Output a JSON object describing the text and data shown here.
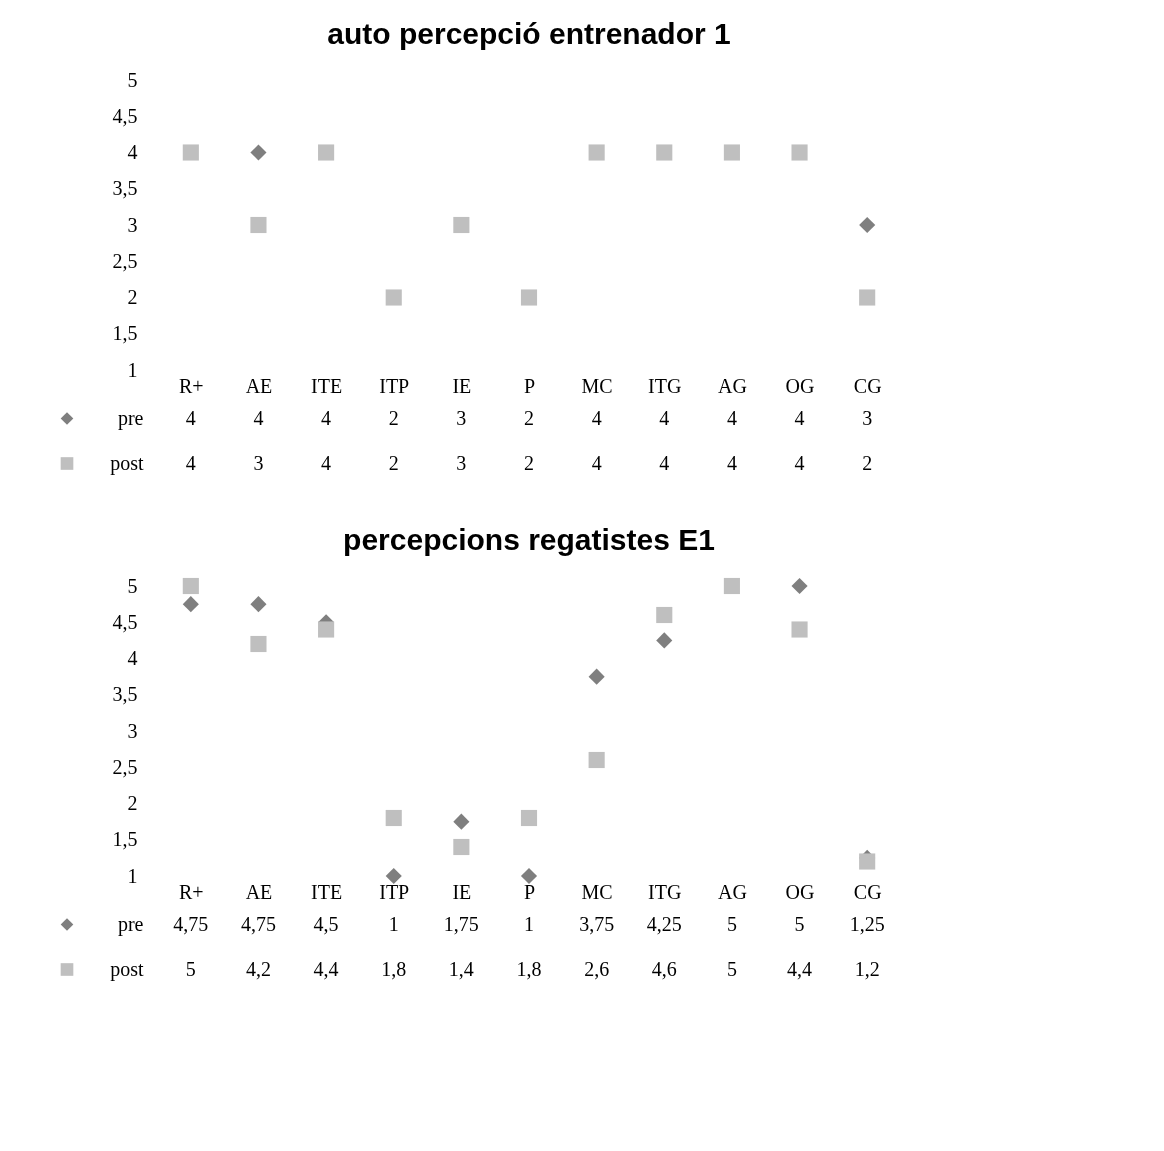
{
  "chart_data": [
    {
      "type": "scatter",
      "title": "auto percepció entrenador 1",
      "categories": [
        "R+",
        "AE",
        "ITE",
        "ITP",
        "IE",
        "P",
        "MC",
        "ITG",
        "AG",
        "OG",
        "CG"
      ],
      "ylim": [
        1,
        5
      ],
      "yticks": [
        1,
        {
          "value": 1.5,
          "label": "1,5"
        },
        2,
        {
          "value": 2.5,
          "label": "2,5"
        },
        3,
        {
          "value": 3.5,
          "label": "3,5"
        },
        4,
        {
          "value": 4.5,
          "label": "4,5"
        },
        5
      ],
      "grid": false,
      "legend": "bottom left",
      "series": [
        {
          "name": "pre",
          "color": "#7f7f7f",
          "marker": "diamond",
          "values": [
            null,
            4,
            null,
            null,
            null,
            null,
            null,
            null,
            null,
            null,
            3
          ],
          "value_labels": [
            "4",
            "4",
            "4",
            "2",
            "3",
            "2",
            "4",
            "4",
            "4",
            "4",
            "3"
          ]
        },
        {
          "name": "post",
          "color": "#bfbfbf",
          "marker": "square",
          "values": [
            4,
            3,
            4,
            2,
            3,
            2,
            4,
            4,
            4,
            4,
            2
          ],
          "value_labels": [
            "4",
            "3",
            "4",
            "2",
            "3",
            "2",
            "4",
            "4",
            "4",
            "4",
            "2"
          ]
        }
      ]
    },
    {
      "type": "scatter",
      "title": "percepcions regatistes E1",
      "categories": [
        "R+",
        "AE",
        "ITE",
        "ITP",
        "IE",
        "P",
        "MC",
        "ITG",
        "AG",
        "OG",
        "CG"
      ],
      "ylim": [
        1,
        5
      ],
      "yticks": [
        1,
        {
          "value": 1.5,
          "label": "1,5"
        },
        2,
        {
          "value": 2.5,
          "label": "2,5"
        },
        3,
        {
          "value": 3.5,
          "label": "3,5"
        },
        4,
        {
          "value": 4.5,
          "label": "4,5"
        },
        5
      ],
      "grid": false,
      "legend": "bottom left",
      "series": [
        {
          "name": "pre",
          "color": "#7f7f7f",
          "marker": "diamond",
          "values": [
            4.75,
            4.75,
            4.5,
            1,
            1.75,
            1,
            3.75,
            4.25,
            null,
            5,
            1.25
          ],
          "value_labels": [
            "4,75",
            "4,75",
            "4,5",
            "1",
            "1,75",
            "1",
            "3,75",
            "4,25",
            "5",
            "5",
            "1,25"
          ]
        },
        {
          "name": "post",
          "color": "#bfbfbf",
          "marker": "square",
          "values": [
            5,
            4.2,
            4.4,
            1.8,
            1.4,
            1.8,
            2.6,
            4.6,
            5,
            4.4,
            1.2
          ],
          "value_labels": [
            "5",
            "4,2",
            "4,4",
            "1,8",
            "1,4",
            "1,8",
            "2,6",
            "4,6",
            "5",
            "4,4",
            "1,2"
          ]
        }
      ]
    }
  ]
}
